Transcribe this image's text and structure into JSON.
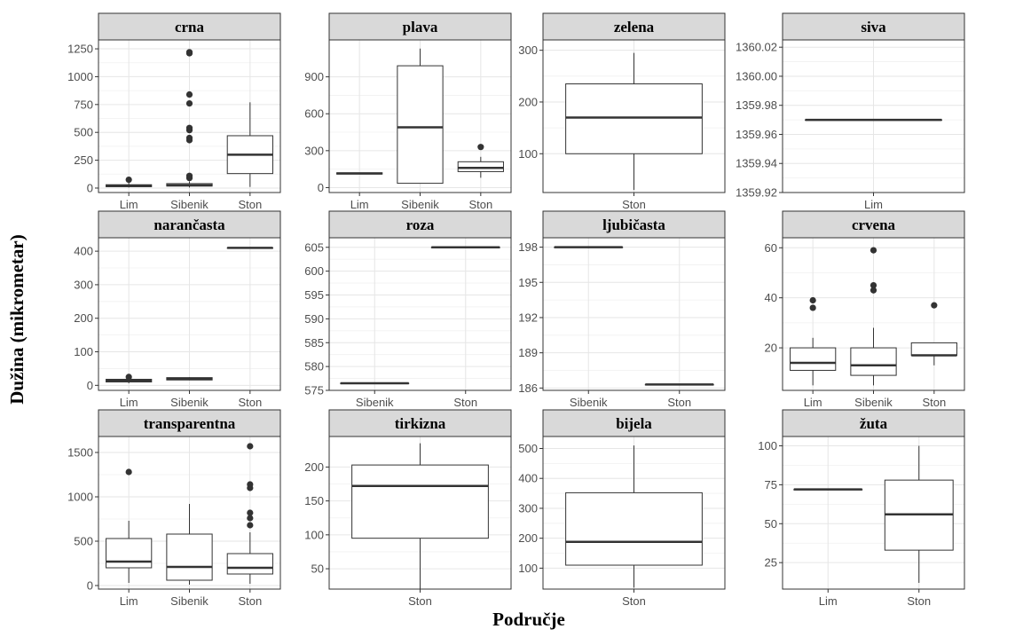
{
  "chart_data": {
    "type": "boxplot",
    "layout": "facet-grid 3x4",
    "xlabel": "Područje",
    "ylabel": "Dužina (mikrometar)",
    "grid": true,
    "panels": [
      {
        "title": "crna",
        "categories": [
          "Lim",
          "Sibenik",
          "Ston"
        ],
        "ylim": [
          -40,
          1330
        ],
        "yticks": [
          0,
          250,
          500,
          750,
          1000,
          1250
        ],
        "boxes": [
          {
            "q1": 12,
            "median": 20,
            "q3": 30,
            "whisker_low": 5,
            "whisker_high": 50,
            "outliers": [
              75
            ]
          },
          {
            "q1": 18,
            "median": 25,
            "q3": 40,
            "whisker_low": 5,
            "whisker_high": 60,
            "outliers": [
              90,
              110,
              430,
              450,
              520,
              540,
              760,
              840,
              1210,
              1220
            ]
          },
          {
            "q1": 130,
            "median": 300,
            "q3": 470,
            "whisker_low": 10,
            "whisker_high": 770,
            "outliers": []
          }
        ]
      },
      {
        "title": "plava",
        "categories": [
          "Lim",
          "Sibenik",
          "Ston"
        ],
        "ylim": [
          -40,
          1200
        ],
        "yticks": [
          0,
          300,
          600,
          900
        ],
        "boxes": [
          {
            "q1": 110,
            "median": 115,
            "q3": 120,
            "whisker_low": 110,
            "whisker_high": 120,
            "outliers": []
          },
          {
            "q1": 35,
            "median": 490,
            "q3": 990,
            "whisker_low": 35,
            "whisker_high": 1130,
            "outliers": []
          },
          {
            "q1": 130,
            "median": 160,
            "q3": 210,
            "whisker_low": 80,
            "whisker_high": 250,
            "outliers": [
              330
            ]
          }
        ]
      },
      {
        "title": "zelena",
        "categories": [
          "Ston"
        ],
        "ylim": [
          25,
          320
        ],
        "yticks": [
          100,
          200,
          300
        ],
        "boxes": [
          {
            "q1": 100,
            "median": 170,
            "q3": 235,
            "whisker_low": 30,
            "whisker_high": 295,
            "outliers": []
          }
        ]
      },
      {
        "title": "siva",
        "categories": [
          "Lim"
        ],
        "ylim": [
          1359.92,
          1360.025
        ],
        "yticks": [
          1359.92,
          1359.94,
          1359.96,
          1359.98,
          1360.0,
          1360.02
        ],
        "tick_format": "fixed2",
        "boxes": [
          {
            "q1": 1359.97,
            "median": 1359.97,
            "q3": 1359.97,
            "whisker_low": 1359.97,
            "whisker_high": 1359.97,
            "outliers": []
          }
        ]
      },
      {
        "title": "narančasta",
        "categories": [
          "Lim",
          "Sibenik",
          "Ston"
        ],
        "ylim": [
          -15,
          440
        ],
        "yticks": [
          0,
          100,
          200,
          300,
          400
        ],
        "boxes": [
          {
            "q1": 10,
            "median": 14,
            "q3": 18,
            "whisker_low": 6,
            "whisker_high": 20,
            "outliers": [
              25
            ]
          },
          {
            "q1": 16,
            "median": 20,
            "q3": 23,
            "whisker_low": 15,
            "whisker_high": 24,
            "outliers": []
          },
          {
            "q1": 410,
            "median": 410,
            "q3": 410,
            "whisker_low": 410,
            "whisker_high": 410,
            "outliers": []
          }
        ]
      },
      {
        "title": "roza",
        "categories": [
          "Sibenik",
          "Ston"
        ],
        "ylim": [
          575,
          607
        ],
        "yticks": [
          575,
          580,
          585,
          590,
          595,
          600,
          605
        ],
        "boxes": [
          {
            "q1": 576.5,
            "median": 576.5,
            "q3": 576.5,
            "whisker_low": 576.5,
            "whisker_high": 576.5,
            "outliers": []
          },
          {
            "q1": 605,
            "median": 605,
            "q3": 605,
            "whisker_low": 605,
            "whisker_high": 605,
            "outliers": []
          }
        ]
      },
      {
        "title": "ljubičasta",
        "categories": [
          "Sibenik",
          "Ston"
        ],
        "ylim": [
          185.8,
          198.8
        ],
        "yticks": [
          186,
          189,
          192,
          195,
          198
        ],
        "boxes": [
          {
            "q1": 198,
            "median": 198,
            "q3": 198,
            "whisker_low": 198,
            "whisker_high": 198,
            "outliers": []
          },
          {
            "q1": 186.3,
            "median": 186.3,
            "q3": 186.3,
            "whisker_low": 186.3,
            "whisker_high": 186.3,
            "outliers": []
          }
        ]
      },
      {
        "title": "crvena",
        "categories": [
          "Lim",
          "Sibenik",
          "Ston"
        ],
        "ylim": [
          3,
          64
        ],
        "yticks": [
          20,
          40,
          60
        ],
        "boxes": [
          {
            "q1": 11,
            "median": 14,
            "q3": 20,
            "whisker_low": 5,
            "whisker_high": 24,
            "outliers": [
              36,
              39
            ]
          },
          {
            "q1": 9,
            "median": 13,
            "q3": 20,
            "whisker_low": 5,
            "whisker_high": 28,
            "outliers": [
              43,
              45,
              59
            ]
          },
          {
            "q1": 17,
            "median": 17,
            "q3": 22,
            "whisker_low": 13,
            "whisker_high": 22,
            "outliers": [
              37
            ]
          }
        ]
      },
      {
        "title": "transparentna",
        "categories": [
          "Lim",
          "Sibenik",
          "Ston"
        ],
        "ylim": [
          -40,
          1680
        ],
        "yticks": [
          0,
          500,
          1000,
          1500
        ],
        "boxes": [
          {
            "q1": 200,
            "median": 270,
            "q3": 530,
            "whisker_low": 30,
            "whisker_high": 730,
            "outliers": [
              1280
            ]
          },
          {
            "q1": 60,
            "median": 210,
            "q3": 580,
            "whisker_low": 10,
            "whisker_high": 920,
            "outliers": []
          },
          {
            "q1": 130,
            "median": 200,
            "q3": 360,
            "whisker_low": 20,
            "whisker_high": 600,
            "outliers": [
              680,
              760,
              820,
              1100,
              1140,
              1570
            ]
          }
        ]
      },
      {
        "title": "tirkizna",
        "categories": [
          "Ston"
        ],
        "ylim": [
          20,
          245
        ],
        "yticks": [
          50,
          100,
          150,
          200
        ],
        "boxes": [
          {
            "q1": 95,
            "median": 172,
            "q3": 203,
            "whisker_low": 20,
            "whisker_high": 235,
            "outliers": []
          }
        ]
      },
      {
        "title": "bijela",
        "categories": [
          "Ston"
        ],
        "ylim": [
          30,
          540
        ],
        "yticks": [
          100,
          200,
          300,
          400,
          500
        ],
        "boxes": [
          {
            "q1": 110,
            "median": 188,
            "q3": 352,
            "whisker_low": 35,
            "whisker_high": 510,
            "outliers": []
          }
        ]
      },
      {
        "title": "žuta",
        "categories": [
          "Lim",
          "Ston"
        ],
        "ylim": [
          8,
          106
        ],
        "yticks": [
          25,
          50,
          75,
          100
        ],
        "boxes": [
          {
            "q1": 72,
            "median": 72,
            "q3": 72,
            "whisker_low": 72,
            "whisker_high": 72,
            "outliers": []
          },
          {
            "q1": 33,
            "median": 56,
            "q3": 78,
            "whisker_low": 12,
            "whisker_high": 100,
            "outliers": []
          }
        ]
      }
    ]
  }
}
